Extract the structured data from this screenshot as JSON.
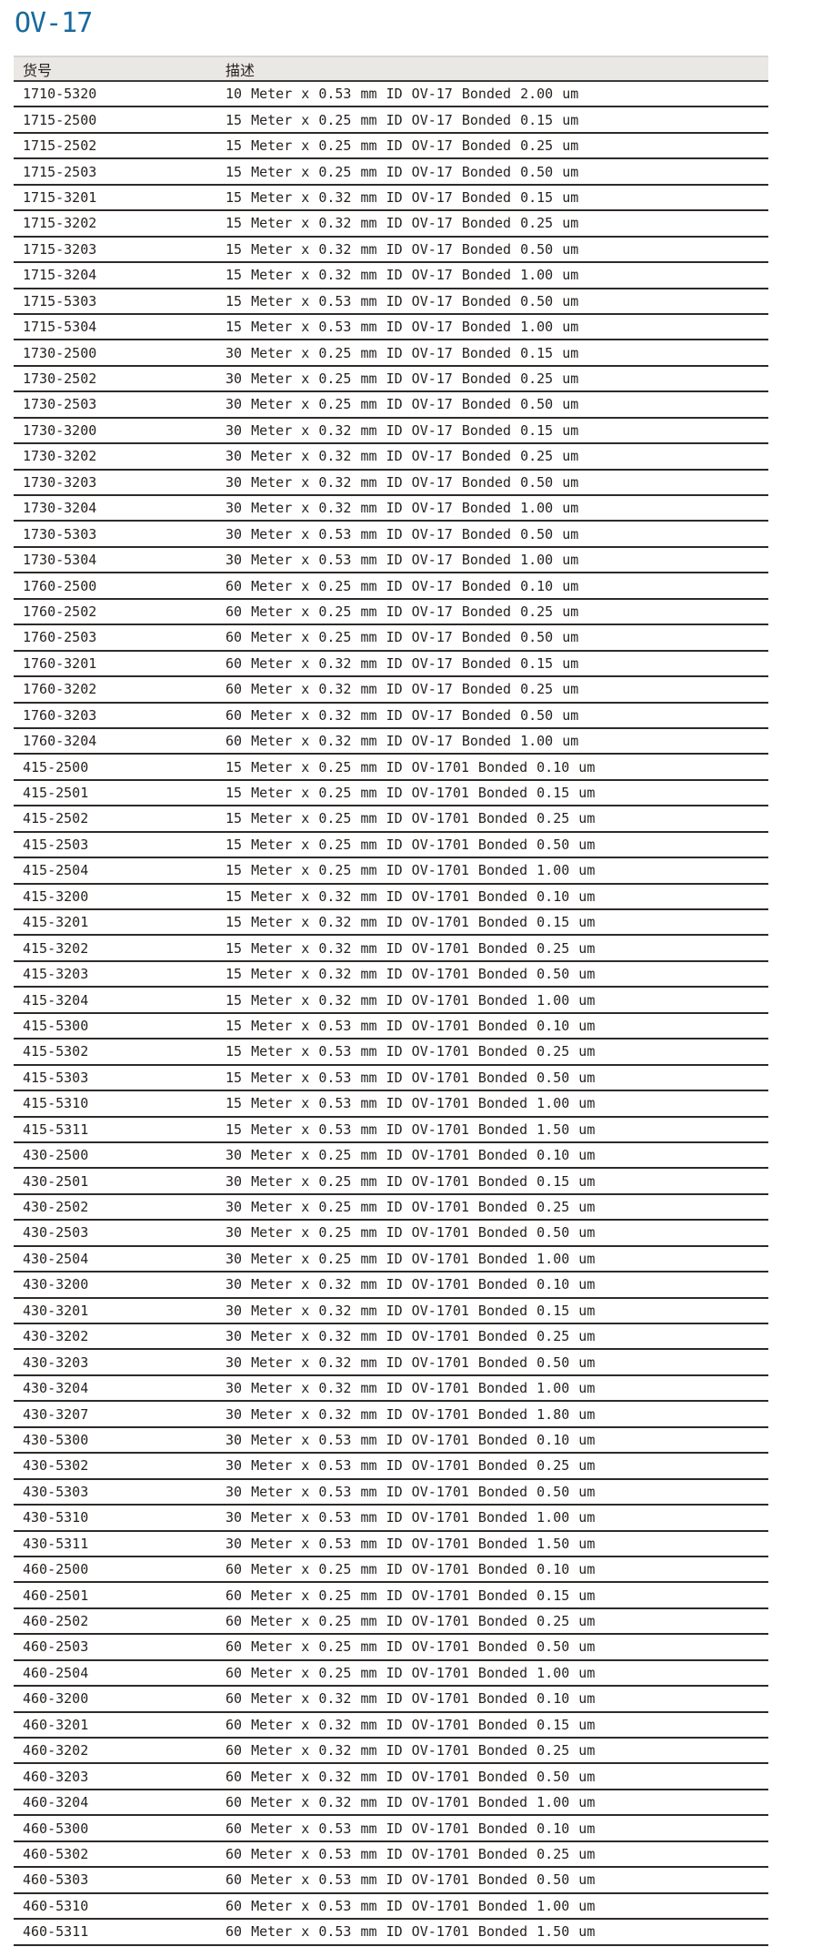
{
  "page": {
    "title": "OV-17",
    "title_color": "#1a6a9d",
    "text_color": "#262220",
    "line_color": "#2e2a28",
    "header_bg": "#e9e8e4"
  },
  "table": {
    "columns": [
      {
        "key": "sku",
        "label": "货号"
      },
      {
        "key": "desc",
        "label": "描述"
      }
    ],
    "rows": [
      {
        "sku": "1710-5320",
        "desc": "10 Meter x 0.53 mm ID OV-17 Bonded 2.00 um"
      },
      {
        "sku": "1715-2500",
        "desc": "15 Meter x 0.25 mm ID OV-17 Bonded 0.15 um"
      },
      {
        "sku": "1715-2502",
        "desc": "15 Meter x 0.25 mm ID OV-17 Bonded 0.25 um"
      },
      {
        "sku": "1715-2503",
        "desc": "15 Meter x 0.25 mm ID OV-17 Bonded 0.50 um"
      },
      {
        "sku": "1715-3201",
        "desc": "15 Meter x 0.32 mm ID OV-17 Bonded 0.15 um"
      },
      {
        "sku": "1715-3202",
        "desc": "15 Meter x 0.32 mm ID OV-17 Bonded 0.25 um"
      },
      {
        "sku": "1715-3203",
        "desc": "15 Meter x 0.32 mm ID OV-17 Bonded 0.50 um"
      },
      {
        "sku": "1715-3204",
        "desc": "15 Meter x 0.32 mm ID OV-17 Bonded 1.00 um"
      },
      {
        "sku": "1715-5303",
        "desc": "15 Meter x 0.53 mm ID OV-17 Bonded 0.50 um"
      },
      {
        "sku": "1715-5304",
        "desc": "15 Meter x 0.53 mm ID OV-17 Bonded 1.00 um"
      },
      {
        "sku": "1730-2500",
        "desc": "30 Meter x 0.25 mm ID OV-17 Bonded 0.15 um"
      },
      {
        "sku": "1730-2502",
        "desc": "30 Meter x 0.25 mm ID OV-17 Bonded 0.25 um"
      },
      {
        "sku": "1730-2503",
        "desc": "30 Meter x 0.25 mm ID OV-17 Bonded 0.50 um"
      },
      {
        "sku": "1730-3200",
        "desc": "30 Meter x 0.32 mm ID OV-17 Bonded 0.15 um"
      },
      {
        "sku": "1730-3202",
        "desc": "30 Meter x 0.32 mm ID OV-17 Bonded 0.25 um"
      },
      {
        "sku": "1730-3203",
        "desc": "30 Meter x 0.32 mm ID OV-17 Bonded 0.50 um"
      },
      {
        "sku": "1730-3204",
        "desc": "30 Meter x 0.32 mm ID OV-17 Bonded 1.00 um"
      },
      {
        "sku": "1730-5303",
        "desc": "30 Meter x 0.53 mm ID OV-17 Bonded 0.50 um"
      },
      {
        "sku": "1730-5304",
        "desc": "30 Meter x 0.53 mm ID OV-17 Bonded 1.00 um"
      },
      {
        "sku": "1760-2500",
        "desc": "60 Meter x 0.25 mm ID OV-17 Bonded 0.10 um"
      },
      {
        "sku": "1760-2502",
        "desc": "60 Meter x 0.25 mm ID OV-17 Bonded 0.25 um"
      },
      {
        "sku": "1760-2503",
        "desc": "60 Meter x 0.25 mm ID OV-17 Bonded 0.50 um"
      },
      {
        "sku": "1760-3201",
        "desc": "60 Meter x 0.32 mm ID OV-17 Bonded 0.15 um"
      },
      {
        "sku": "1760-3202",
        "desc": "60 Meter x 0.32 mm ID OV-17 Bonded 0.25 um"
      },
      {
        "sku": "1760-3203",
        "desc": "60 Meter x 0.32 mm ID OV-17 Bonded 0.50 um"
      },
      {
        "sku": "1760-3204",
        "desc": "60 Meter x 0.32 mm ID OV-17 Bonded 1.00 um"
      },
      {
        "sku": "415-2500",
        "desc": "15 Meter x 0.25 mm ID OV-1701 Bonded 0.10 um"
      },
      {
        "sku": "415-2501",
        "desc": "15 Meter x 0.25 mm ID OV-1701 Bonded 0.15 um"
      },
      {
        "sku": "415-2502",
        "desc": "15 Meter x 0.25 mm ID OV-1701 Bonded 0.25 um"
      },
      {
        "sku": "415-2503",
        "desc": "15 Meter x 0.25 mm ID OV-1701 Bonded 0.50 um"
      },
      {
        "sku": "415-2504",
        "desc": "15 Meter x 0.25 mm ID OV-1701 Bonded 1.00 um"
      },
      {
        "sku": "415-3200",
        "desc": "15 Meter x 0.32 mm ID OV-1701 Bonded 0.10 um"
      },
      {
        "sku": "415-3201",
        "desc": "15 Meter x 0.32 mm ID OV-1701 Bonded 0.15 um"
      },
      {
        "sku": "415-3202",
        "desc": "15 Meter x 0.32 mm ID OV-1701 Bonded 0.25 um"
      },
      {
        "sku": "415-3203",
        "desc": "15 Meter x 0.32 mm ID OV-1701 Bonded 0.50 um"
      },
      {
        "sku": "415-3204",
        "desc": "15 Meter x 0.32 mm ID OV-1701 Bonded 1.00 um"
      },
      {
        "sku": "415-5300",
        "desc": "15 Meter x 0.53 mm ID OV-1701 Bonded 0.10 um"
      },
      {
        "sku": "415-5302",
        "desc": "15 Meter x 0.53 mm ID OV-1701 Bonded 0.25 um"
      },
      {
        "sku": "415-5303",
        "desc": "15 Meter x 0.53 mm ID OV-1701 Bonded 0.50 um"
      },
      {
        "sku": "415-5310",
        "desc": "15 Meter x 0.53 mm ID OV-1701 Bonded 1.00 um"
      },
      {
        "sku": "415-5311",
        "desc": "15 Meter x 0.53 mm ID OV-1701 Bonded 1.50 um"
      },
      {
        "sku": "430-2500",
        "desc": "30 Meter x 0.25 mm ID OV-1701 Bonded 0.10 um"
      },
      {
        "sku": "430-2501",
        "desc": "30 Meter x 0.25 mm ID OV-1701 Bonded 0.15 um"
      },
      {
        "sku": "430-2502",
        "desc": "30 Meter x 0.25 mm ID OV-1701 Bonded 0.25 um"
      },
      {
        "sku": "430-2503",
        "desc": "30 Meter x 0.25 mm ID OV-1701 Bonded 0.50 um"
      },
      {
        "sku": "430-2504",
        "desc": "30 Meter x 0.25 mm ID OV-1701 Bonded 1.00 um"
      },
      {
        "sku": "430-3200",
        "desc": "30 Meter x 0.32 mm ID OV-1701 Bonded 0.10 um"
      },
      {
        "sku": "430-3201",
        "desc": "30 Meter x 0.32 mm ID OV-1701 Bonded 0.15 um"
      },
      {
        "sku": "430-3202",
        "desc": "30 Meter x 0.32 mm ID OV-1701 Bonded 0.25 um"
      },
      {
        "sku": "430-3203",
        "desc": "30 Meter x 0.32 mm ID OV-1701 Bonded 0.50 um"
      },
      {
        "sku": "430-3204",
        "desc": "30 Meter x 0.32 mm ID OV-1701 Bonded 1.00 um"
      },
      {
        "sku": "430-3207",
        "desc": "30 Meter x 0.32 mm ID OV-1701 Bonded 1.80 um"
      },
      {
        "sku": "430-5300",
        "desc": "30 Meter x 0.53 mm ID OV-1701 Bonded 0.10 um"
      },
      {
        "sku": "430-5302",
        "desc": "30 Meter x 0.53 mm ID OV-1701 Bonded 0.25 um"
      },
      {
        "sku": "430-5303",
        "desc": "30 Meter x 0.53 mm ID OV-1701 Bonded 0.50 um"
      },
      {
        "sku": "430-5310",
        "desc": "30 Meter x 0.53 mm ID OV-1701 Bonded 1.00 um"
      },
      {
        "sku": "430-5311",
        "desc": "30 Meter x 0.53 mm ID OV-1701 Bonded 1.50 um"
      },
      {
        "sku": "460-2500",
        "desc": "60 Meter x 0.25 mm ID OV-1701 Bonded 0.10 um"
      },
      {
        "sku": "460-2501",
        "desc": "60 Meter x 0.25 mm ID OV-1701 Bonded 0.15 um"
      },
      {
        "sku": "460-2502",
        "desc": "60 Meter x 0.25 mm ID OV-1701 Bonded 0.25 um"
      },
      {
        "sku": "460-2503",
        "desc": "60 Meter x 0.25 mm ID OV-1701 Bonded 0.50 um"
      },
      {
        "sku": "460-2504",
        "desc": "60 Meter x 0.25 mm ID OV-1701 Bonded 1.00 um"
      },
      {
        "sku": "460-3200",
        "desc": "60 Meter x 0.32 mm ID OV-1701 Bonded 0.10 um"
      },
      {
        "sku": "460-3201",
        "desc": "60 Meter x 0.32 mm ID OV-1701 Bonded 0.15 um"
      },
      {
        "sku": "460-3202",
        "desc": "60 Meter x 0.32 mm ID OV-1701 Bonded 0.25 um"
      },
      {
        "sku": "460-3203",
        "desc": "60 Meter x 0.32 mm ID OV-1701 Bonded 0.50 um"
      },
      {
        "sku": "460-3204",
        "desc": "60 Meter x 0.32 mm ID OV-1701 Bonded 1.00 um"
      },
      {
        "sku": "460-5300",
        "desc": "60 Meter x 0.53 mm ID OV-1701 Bonded 0.10 um"
      },
      {
        "sku": "460-5302",
        "desc": "60 Meter x 0.53 mm ID OV-1701 Bonded 0.25 um"
      },
      {
        "sku": "460-5303",
        "desc": "60 Meter x 0.53 mm ID OV-1701 Bonded 0.50 um"
      },
      {
        "sku": "460-5310",
        "desc": "60 Meter x 0.53 mm ID OV-1701 Bonded 1.00 um"
      },
      {
        "sku": "460-5311",
        "desc": "60 Meter x 0.53 mm ID OV-1701 Bonded 1.50 um"
      }
    ]
  }
}
